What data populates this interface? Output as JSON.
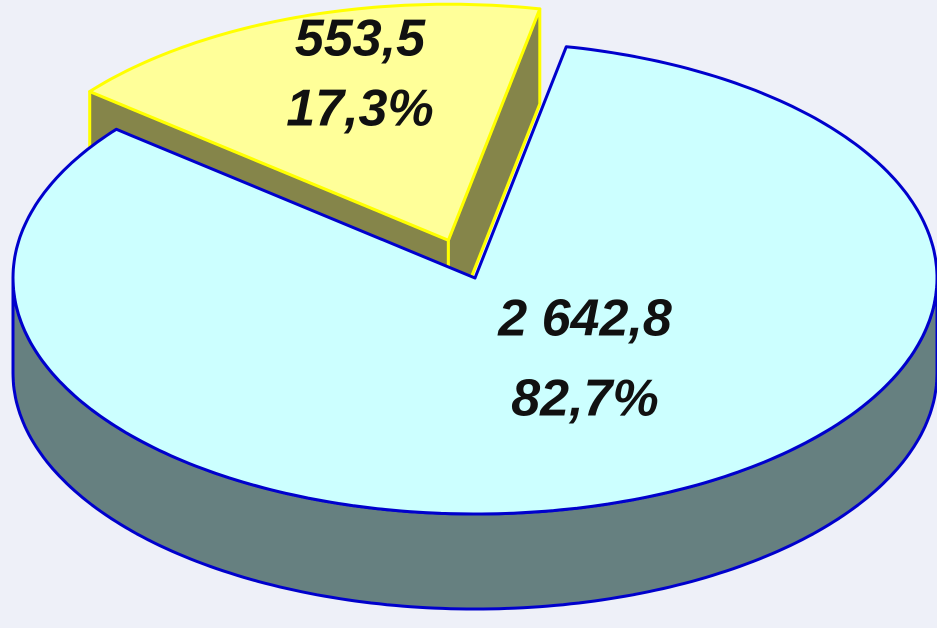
{
  "chart_data": {
    "type": "pie",
    "values": [
      553.5,
      2642.8
    ],
    "value_labels": [
      "553,5",
      "2 642,8"
    ],
    "percents": [
      17.3,
      82.7
    ],
    "percent_labels": [
      "17,3%",
      "82,7%"
    ],
    "colors": [
      "#ffff99",
      "#ccffff"
    ],
    "edge_colors": [
      "#ffff00",
      "#0000cc"
    ],
    "side_colors": [
      "#85854a",
      "#668080"
    ]
  }
}
